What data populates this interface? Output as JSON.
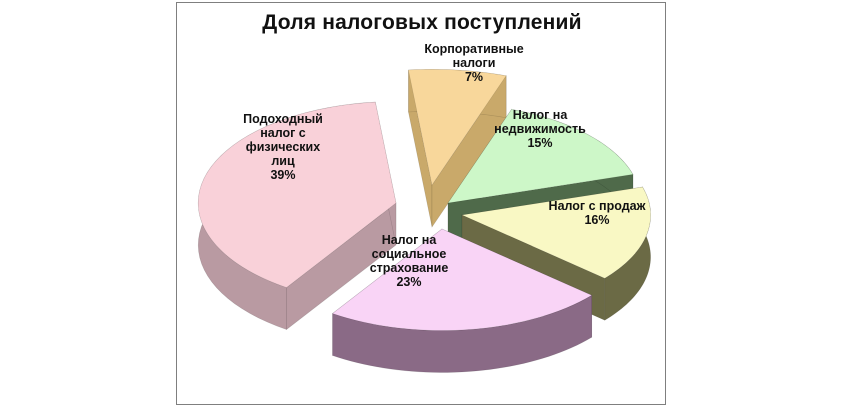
{
  "chart_data": {
    "type": "pie",
    "title": "Доля налоговых поступлений",
    "exploded": true,
    "three_d": true,
    "slices": [
      {
        "label": "Корпоративные налоги",
        "label_lines": [
          "Корпоративные",
          "налоги"
        ],
        "value": 7,
        "value_label": "7%",
        "color": "#f8d79b",
        "side_color": "#c9a96a"
      },
      {
        "label": "Налог на недвижимость",
        "label_lines": [
          "Налог на",
          "недвижимость"
        ],
        "value": 15,
        "value_label": "15%",
        "color": "#cdf7c8",
        "side_color": "#4f6a4a"
      },
      {
        "label": "Налог с продаж",
        "label_lines": [
          "Налог с продаж"
        ],
        "value": 16,
        "value_label": "16%",
        "color": "#f9f8c4",
        "side_color": "#6b6a45"
      },
      {
        "label": "Налог на социальное страхование",
        "label_lines": [
          "Налог на",
          "социальное",
          "страхование"
        ],
        "value": 23,
        "value_label": "23%",
        "color": "#f9d4f6",
        "side_color": "#8a6a86"
      },
      {
        "label": "Подоходный налог с физических лиц",
        "label_lines": [
          "Подоходный",
          "налог с",
          "физических",
          "лиц"
        ],
        "value": 39,
        "value_label": "39%",
        "color": "#f9d1d9",
        "side_color": "#b99aa2"
      }
    ]
  }
}
